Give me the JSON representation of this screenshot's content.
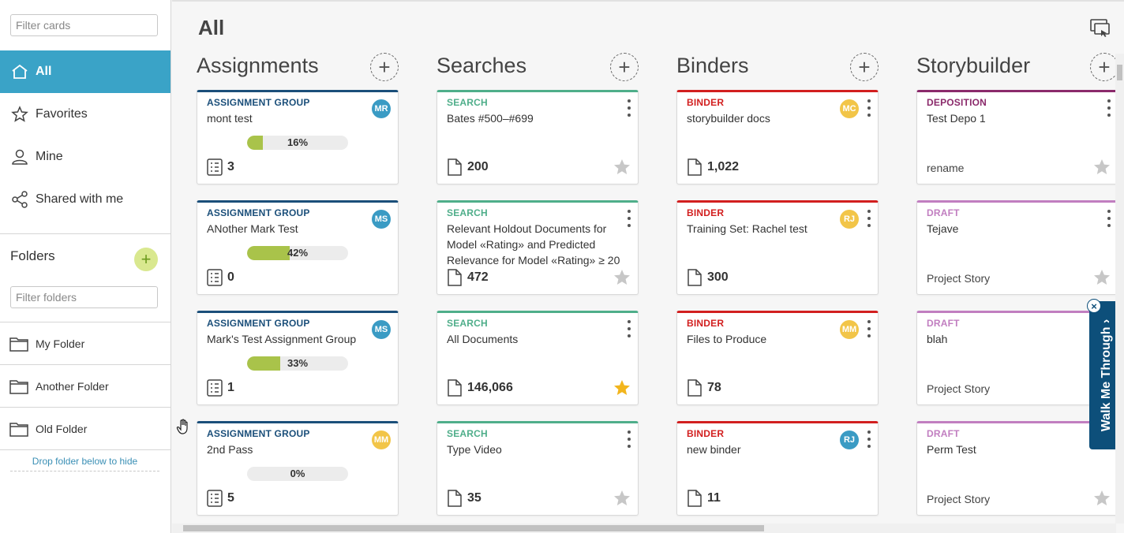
{
  "sidebar": {
    "filter_cards_placeholder": "Filter cards",
    "nav": [
      {
        "label": "All",
        "icon": "home-icon",
        "active": true
      },
      {
        "label": "Favorites",
        "icon": "star-outline-icon",
        "active": false
      },
      {
        "label": "Mine",
        "icon": "user-icon",
        "active": false
      },
      {
        "label": "Shared with me",
        "icon": "share-icon",
        "active": false
      }
    ],
    "folders_title": "Folders",
    "add_folder_label": "+",
    "filter_folders_placeholder": "Filter folders",
    "folders": [
      {
        "label": "My Folder"
      },
      {
        "label": "Another Folder"
      },
      {
        "label": "Old Folder"
      }
    ],
    "drop_hint": "Drop folder below to hide"
  },
  "main": {
    "title": "All",
    "present_icon": "present-icon",
    "columns": [
      {
        "title": "Assignments",
        "add_label": "+",
        "cards": [
          {
            "type": "ASSIGNMENT GROUP",
            "name": "mont test",
            "avatar": "MR",
            "progress_pct": 16,
            "progress_text": "16%",
            "count": "3"
          },
          {
            "type": "ASSIGNMENT GROUP",
            "name": "ANother Mark Test",
            "avatar": "MS",
            "progress_pct": 42,
            "progress_text": "42%",
            "count": "0"
          },
          {
            "type": "ASSIGNMENT GROUP",
            "name": "Mark's Test Assignment Group",
            "avatar": "MS",
            "progress_pct": 33,
            "progress_text": "33%",
            "count": "1"
          },
          {
            "type": "ASSIGNMENT GROUP",
            "name": "2nd Pass",
            "avatar": "MM",
            "progress_pct": 0,
            "progress_text": "0%",
            "count": "5"
          }
        ]
      },
      {
        "title": "Searches",
        "add_label": "+",
        "cards": [
          {
            "type": "SEARCH",
            "name": "Bates #500–#699",
            "count": "200",
            "favorite": false
          },
          {
            "type": "SEARCH",
            "name": "Relevant Holdout Documents for Model «Rating» and Predicted Relevance for Model «Rating» ≥ 20",
            "count": "472",
            "favorite": false
          },
          {
            "type": "SEARCH",
            "name": "All Documents",
            "count": "146,066",
            "favorite": true
          },
          {
            "type": "SEARCH",
            "name": "Type Video",
            "count": "35",
            "favorite": false
          }
        ]
      },
      {
        "title": "Binders",
        "add_label": "+",
        "cards": [
          {
            "type": "BINDER",
            "name": "storybuilder docs",
            "avatar": "MC",
            "count": "1,022"
          },
          {
            "type": "BINDER",
            "name": "Training Set: Rachel test",
            "avatar": "RJ",
            "count": "300"
          },
          {
            "type": "BINDER",
            "name": "Files to Produce",
            "avatar": "MM",
            "count": "78"
          },
          {
            "type": "BINDER",
            "name": "new binder",
            "avatar": "RJ",
            "count": "11"
          }
        ]
      },
      {
        "title": "Storybuilder",
        "add_label": "+",
        "cards": [
          {
            "type": "DEPOSITION",
            "name": "Test Depo 1",
            "sub": "rename"
          },
          {
            "type": "DRAFT",
            "name": "Tejave",
            "sub": "Project Story"
          },
          {
            "type": "DRAFT",
            "name": "blah",
            "sub": "Project Story"
          },
          {
            "type": "DRAFT",
            "name": "Perm Test",
            "sub": "Project Story"
          }
        ]
      }
    ]
  },
  "walkme": {
    "label": "Walk Me Through",
    "chevron": "›",
    "close": "×"
  },
  "colors": {
    "accent": "#3aa3c7",
    "assignment": "#1b4f7a",
    "search": "#4fae8a",
    "binder": "#d21f1f",
    "deposition": "#8b2a6b",
    "draft": "#c17ec0",
    "avatar_blue": "#3a9bc4",
    "avatar_yellow": "#f2c548",
    "progress_fill": "#a9c34a",
    "star_gold": "#f2b51d",
    "star_grey": "#c7c7c7"
  }
}
